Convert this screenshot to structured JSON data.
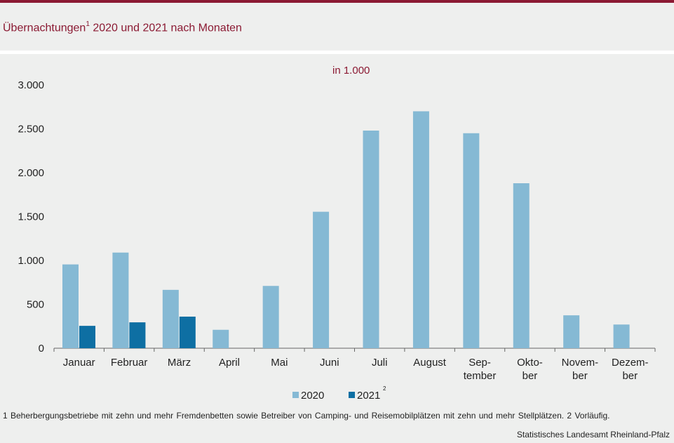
{
  "header": {
    "title_main": "Übernachtungen",
    "title_sup": "1",
    "title_rest": " 2020 und 2021 nach Monaten"
  },
  "chart_data": {
    "type": "bar",
    "unit_label": "in 1.000",
    "categories": [
      [
        "Januar"
      ],
      [
        "Februar"
      ],
      [
        "März"
      ],
      [
        "April"
      ],
      [
        "Mai"
      ],
      [
        "Juni"
      ],
      [
        "Juli"
      ],
      [
        "August"
      ],
      [
        "Sep-",
        "tember"
      ],
      [
        "Okto-",
        "ber"
      ],
      [
        "Novem-",
        "ber"
      ],
      [
        "Dezem-",
        "ber"
      ]
    ],
    "series": [
      {
        "name": "2020",
        "sup": "",
        "color": "#85b9d4",
        "values": [
          955,
          1090,
          665,
          210,
          710,
          1555,
          2480,
          2700,
          2450,
          1880,
          375,
          270
        ]
      },
      {
        "name": "2021",
        "sup": "2",
        "color": "#0e6fa3",
        "values": [
          255,
          295,
          360,
          null,
          null,
          null,
          null,
          null,
          null,
          null,
          null,
          null
        ]
      }
    ],
    "ylim": [
      0,
      3000
    ],
    "yticks": [
      0,
      500,
      1000,
      1500,
      2000,
      2500,
      3000
    ],
    "ytick_labels": [
      "0",
      "500",
      "1.000",
      "1.500",
      "2.000",
      "2.500",
      "3.000"
    ],
    "grid": false,
    "legend": "bottom-center"
  },
  "footer": {
    "footnote": "1 Beherbergungsbetriebe  mit zehn und mehr Fremdenbetten  sowie Betreiber von Camping-  und Reisemobilplätzen  mit zehn und mehr Stellplätzen.   2 Vorläufig.",
    "source": "Statistisches Landesamt Rheinland-Pfalz"
  }
}
